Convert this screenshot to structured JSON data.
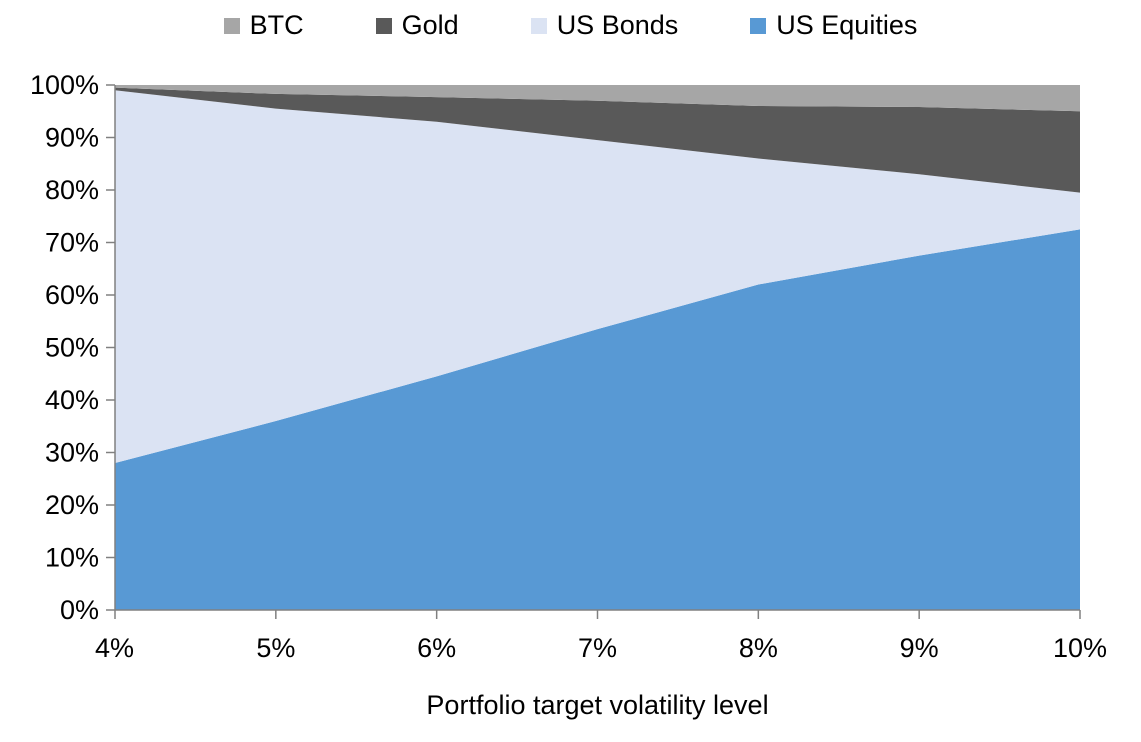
{
  "legend": {
    "items": [
      {
        "label": "BTC",
        "color": "#A6A6A6"
      },
      {
        "label": "Gold",
        "color": "#595959"
      },
      {
        "label": "US Bonds",
        "color": "#DBE3F3"
      },
      {
        "label": "US Equities",
        "color": "#5899D4"
      }
    ]
  },
  "chart_data": {
    "type": "area",
    "stacked": true,
    "percent_stacked": true,
    "title": "",
    "xlabel": "Portfolio target volatility level",
    "ylabel": "",
    "x": [
      4,
      5,
      6,
      7,
      8,
      9,
      10
    ],
    "x_tick_labels": [
      "4%",
      "5%",
      "6%",
      "7%",
      "8%",
      "9%",
      "10%"
    ],
    "y_ticks": [
      0,
      10,
      20,
      30,
      40,
      50,
      60,
      70,
      80,
      90,
      100
    ],
    "y_tick_labels": [
      "0%",
      "10%",
      "20%",
      "30%",
      "40%",
      "50%",
      "60%",
      "70%",
      "80%",
      "90%",
      "100%"
    ],
    "ylim": [
      0,
      100
    ],
    "grid": false,
    "legend_position": "top",
    "series": [
      {
        "name": "US Equities",
        "color": "#5899D4",
        "values": [
          28,
          36,
          44.5,
          53.5,
          62,
          67.5,
          72.5
        ]
      },
      {
        "name": "US Bonds",
        "color": "#DBE3F3",
        "values": [
          71,
          59.5,
          48.5,
          36,
          24,
          15.5,
          7
        ]
      },
      {
        "name": "Gold",
        "color": "#595959",
        "values": [
          0.5,
          2.8,
          4.7,
          7.5,
          10,
          12.8,
          15.5
        ]
      },
      {
        "name": "BTC",
        "color": "#A6A6A6",
        "values": [
          0.5,
          1.7,
          2.3,
          3,
          4,
          4.2,
          5
        ]
      }
    ],
    "axis_color": "#808080",
    "tick_label_color": "#000000"
  }
}
